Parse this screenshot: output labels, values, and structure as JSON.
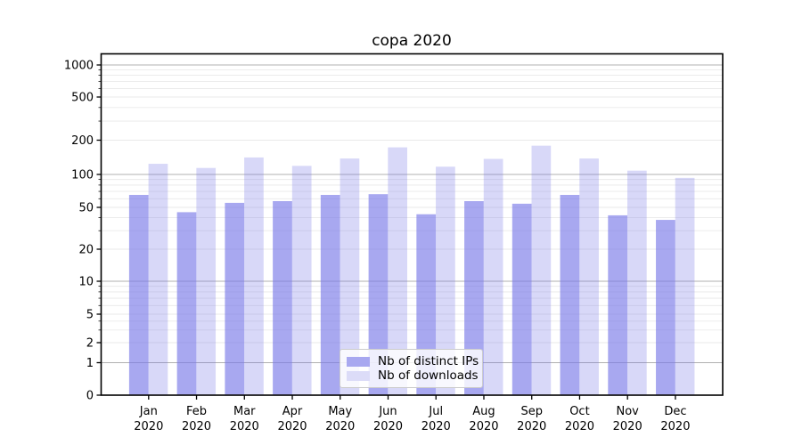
{
  "chart_data": {
    "type": "bar",
    "title": "copa 2020",
    "x_tick_months": [
      "Jan",
      "Feb",
      "Mar",
      "Apr",
      "May",
      "Jun",
      "Jul",
      "Aug",
      "Sep",
      "Oct",
      "Nov",
      "Dec"
    ],
    "x_tick_year": "2020",
    "categories": [
      "Jan 2020",
      "Feb 2020",
      "Mar 2020",
      "Apr 2020",
      "May 2020",
      "Jun 2020",
      "Jul 2020",
      "Aug 2020",
      "Sep 2020",
      "Oct 2020",
      "Nov 2020",
      "Dec 2020"
    ],
    "series": [
      {
        "name": "Nb of distinct IPs",
        "legend_color": "#a8a8f0",
        "fill_opacity": 0.645,
        "values": [
          65,
          45,
          55,
          57,
          65,
          66,
          43,
          57,
          54,
          65,
          42,
          38
        ]
      },
      {
        "name": "Nb of downloads",
        "legend_color": "#dcdcf8",
        "fill_opacity": 0.285,
        "values": [
          124,
          114,
          141,
          119,
          138,
          173,
          117,
          137,
          179,
          138,
          108,
          93
        ]
      }
    ],
    "bar_base_color": "#7878e8",
    "yscale": "symlog",
    "ytick_labels": [
      "0",
      "1",
      "2",
      "5",
      "10",
      "20",
      "50",
      "100",
      "200",
      "500",
      "1000"
    ],
    "ylim": [
      0,
      1400
    ],
    "grid": "horizontal major+minor",
    "legend_position": "lower center",
    "axis_color": "#000000",
    "major_grid_color": "#b0b0b0",
    "minor_grid_color": "#e9e9e9"
  }
}
